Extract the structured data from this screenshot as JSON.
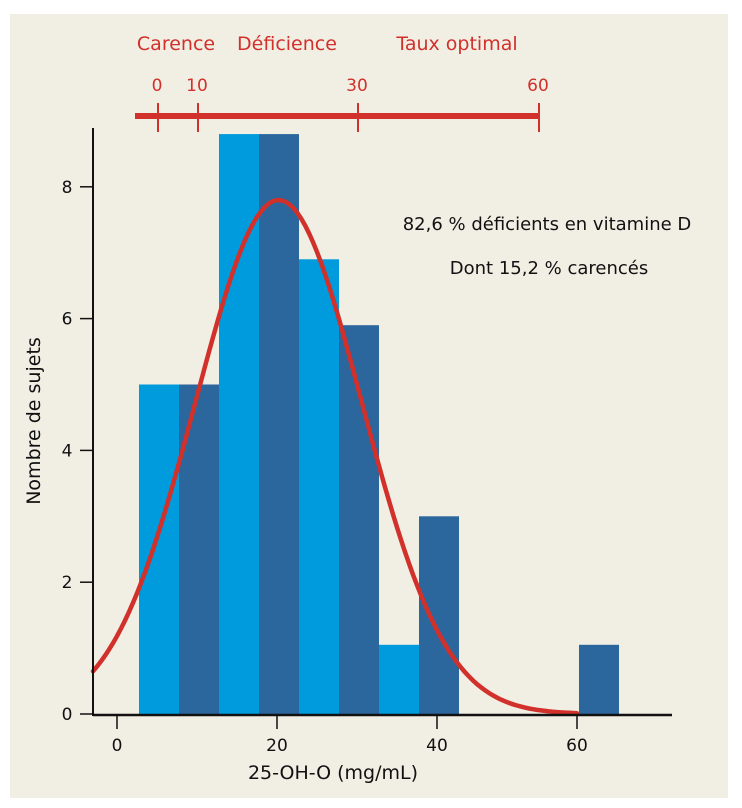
{
  "chart_data": {
    "type": "bar",
    "title": "",
    "xlabel": "25-OH-O (mg/mL)",
    "ylabel": "Nombre de sujets",
    "xlim": [
      -3,
      69
    ],
    "ylim": [
      0,
      8.8
    ],
    "x_ticks": [
      0,
      20,
      40,
      60
    ],
    "y_ticks": [
      0,
      2,
      4,
      6,
      8
    ],
    "bin_width": 5,
    "bins": [
      {
        "start": 2.5,
        "end": 7.5,
        "value": 5,
        "shade": "light"
      },
      {
        "start": 7.5,
        "end": 12.5,
        "value": 5,
        "shade": "dark"
      },
      {
        "start": 12.5,
        "end": 17.5,
        "value": 8.8,
        "shade": "light"
      },
      {
        "start": 17.5,
        "end": 22.5,
        "value": 8.8,
        "shade": "dark"
      },
      {
        "start": 22.5,
        "end": 27.5,
        "value": 6.9,
        "shade": "light"
      },
      {
        "start": 27.5,
        "end": 32.5,
        "value": 5.9,
        "shade": "dark"
      },
      {
        "start": 32.5,
        "end": 37.5,
        "value": 1.05,
        "shade": "light"
      },
      {
        "start": 37.5,
        "end": 42.5,
        "value": 3,
        "shade": "dark"
      },
      {
        "start": 57.5,
        "end": 62.5,
        "value": 1.05,
        "shade": "dark"
      }
    ],
    "fit_curve": {
      "type": "normal",
      "mean": 20.2,
      "peak": 7.8,
      "sd": 10.4,
      "x_range": [
        -3,
        57.5
      ],
      "color": "#d2302a"
    },
    "colors": {
      "light": "#009bdc",
      "dark": "#2b669c",
      "axis": "#111111",
      "accent": "#d2302a",
      "background": "#f1eee4"
    },
    "scale_bar": {
      "categories": [
        "Carence",
        "Déficience",
        "Taux optimal"
      ],
      "ticks": [
        "0",
        "10",
        "30",
        "60"
      ]
    },
    "annotations": [
      "82,6 % déficients en vitamine D",
      "Dont 15,2 % carencés"
    ]
  }
}
